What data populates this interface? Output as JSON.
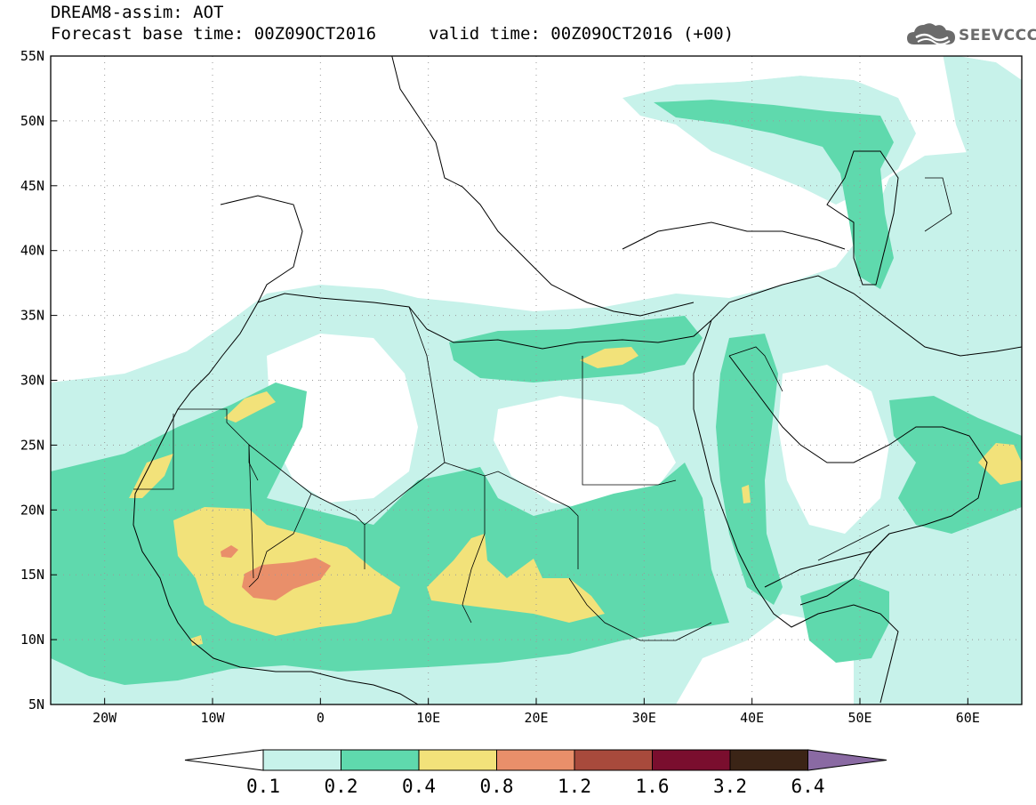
{
  "header": {
    "title_line1": "DREAM8-assim: AOT",
    "title_line2": "Forecast base time: 00Z09OCT2016",
    "valid_time": "valid time: 00Z09OCT2016 (+00)",
    "logo_text": "SEEVCCC",
    "logo_icon": "cloud-icon"
  },
  "map_axes": {
    "lon_range": [
      -25,
      65
    ],
    "lat_range": [
      5,
      55
    ],
    "lon_ticks": [
      "20W",
      "10W",
      "0",
      "10E",
      "20E",
      "30E",
      "40E",
      "50E",
      "60E"
    ],
    "lat_ticks": [
      "5N",
      "10N",
      "15N",
      "20N",
      "25N",
      "30N",
      "35N",
      "40N",
      "45N",
      "50N",
      "55N"
    ],
    "grid": "dotted"
  },
  "colorbar": {
    "levels": [
      "0.1",
      "0.2",
      "0.4",
      "0.8",
      "1.2",
      "1.6",
      "3.2",
      "6.4"
    ],
    "colors": [
      "#c7f2ea",
      "#5fd9ad",
      "#f2e27a",
      "#e98f6a",
      "#a84a3c",
      "#7a0e2e",
      "#3b2416",
      "#8a6aa3"
    ],
    "below_color": "#ffffff"
  },
  "colors": {
    "aot_0_1": "#c7f2ea",
    "aot_0_2": "#5fd9ad",
    "aot_0_4": "#f2e27a",
    "aot_0_8": "#e98f6a"
  }
}
